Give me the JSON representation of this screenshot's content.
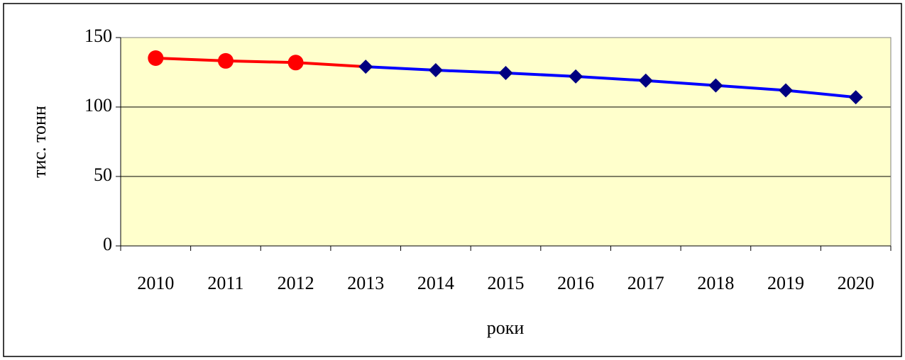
{
  "chart_data": {
    "type": "line",
    "x_label": "роки",
    "y_label": "тис. тонн",
    "categories": [
      "2010",
      "2011",
      "2012",
      "2013",
      "2014",
      "2015",
      "2016",
      "2017",
      "2018",
      "2019",
      "2020"
    ],
    "series": [
      {
        "color": "#ff0000",
        "marker": "circle",
        "values": [
          135.2,
          133.2,
          132,
          129,
          null,
          null,
          null,
          null,
          null,
          null,
          null
        ]
      },
      {
        "color": "#0000ff",
        "marker_color": "#000080",
        "marker": "diamond",
        "values": [
          null,
          null,
          null,
          129,
          126.5,
          124.5,
          122,
          119,
          115.5,
          112,
          107
        ]
      }
    ],
    "ylim": [
      0,
      150
    ],
    "yticks": [
      0,
      50,
      100,
      150
    ],
    "grid": true
  }
}
